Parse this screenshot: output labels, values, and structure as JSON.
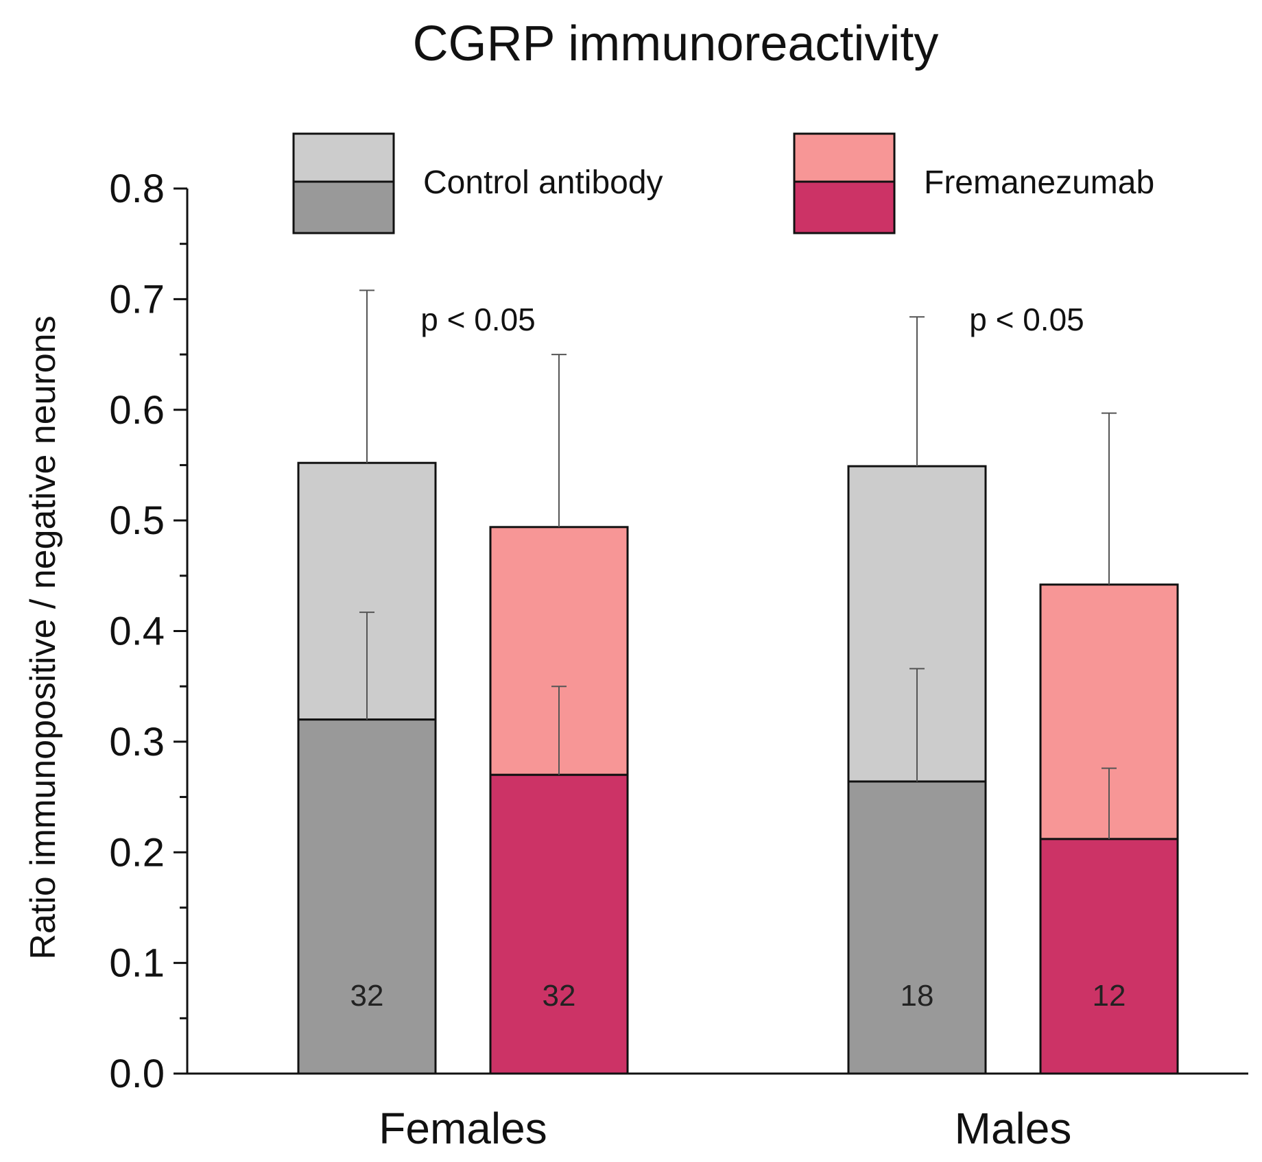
{
  "chart_data": {
    "type": "bar",
    "title": "CGRP immunoreactivity",
    "xlabel": "",
    "ylabel": "Ratio immunopositive / negative neurons",
    "ylim": [
      0,
      0.8
    ],
    "yticks": [
      "0.0",
      "0.1",
      "0.2",
      "0.3",
      "0.4",
      "0.5",
      "0.6",
      "0.7",
      "0.8"
    ],
    "categories": [
      "Females",
      "Males"
    ],
    "legend": {
      "position": "top",
      "entries": [
        {
          "label": "Control antibody",
          "color_light": "#cccccc",
          "color_dark": "#999999"
        },
        {
          "label": "Fremanezumab",
          "color_light": "#f79696",
          "color_dark": "#cc3366"
        }
      ]
    },
    "series": [
      {
        "name": "Control antibody",
        "color_light": "#cccccc",
        "color_dark": "#999999",
        "lower_values": [
          0.32,
          0.264
        ],
        "lower_error": [
          0.417,
          0.366
        ],
        "total_values": [
          0.552,
          0.549
        ],
        "total_error": [
          0.708,
          0.684
        ],
        "n": [
          "32",
          "18"
        ]
      },
      {
        "name": "Fremanezumab",
        "color_light": "#f79696",
        "color_dark": "#cc3366",
        "lower_values": [
          0.27,
          0.212
        ],
        "lower_error": [
          0.35,
          0.276
        ],
        "total_values": [
          0.494,
          0.442
        ],
        "total_error": [
          0.65,
          0.597
        ],
        "n": [
          "32",
          "12"
        ]
      }
    ],
    "annotations": [
      "p < 0.05",
      "p < 0.05"
    ]
  }
}
